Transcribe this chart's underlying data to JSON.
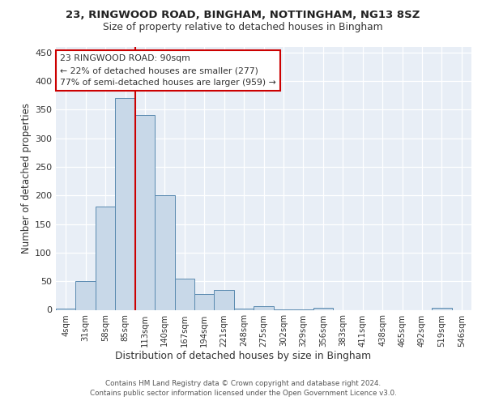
{
  "title1": "23, RINGWOOD ROAD, BINGHAM, NOTTINGHAM, NG13 8SZ",
  "title2": "Size of property relative to detached houses in Bingham",
  "xlabel": "Distribution of detached houses by size in Bingham",
  "ylabel": "Number of detached properties",
  "footnote1": "Contains HM Land Registry data © Crown copyright and database right 2024.",
  "footnote2": "Contains public sector information licensed under the Open Government Licence v3.0.",
  "bin_labels": [
    "4sqm",
    "31sqm",
    "58sqm",
    "85sqm",
    "113sqm",
    "140sqm",
    "167sqm",
    "194sqm",
    "221sqm",
    "248sqm",
    "275sqm",
    "302sqm",
    "329sqm",
    "356sqm",
    "383sqm",
    "411sqm",
    "438sqm",
    "465sqm",
    "492sqm",
    "519sqm",
    "546sqm"
  ],
  "bar_heights": [
    2,
    50,
    180,
    370,
    340,
    200,
    55,
    27,
    34,
    2,
    6,
    1,
    1,
    3,
    0,
    0,
    0,
    0,
    0,
    3,
    0
  ],
  "bar_color": "#c8d8e8",
  "bar_edgecolor": "#5a8ab0",
  "background_color": "#e8eef6",
  "grid_color": "#ffffff",
  "annotation_text": "23 RINGWOOD ROAD: 90sqm\n← 22% of detached houses are smaller (277)\n77% of semi-detached houses are larger (959) →",
  "annotation_box_edgecolor": "#cc0000",
  "annotation_box_facecolor": "#ffffff",
  "ylim": [
    0,
    460
  ],
  "yticks": [
    0,
    50,
    100,
    150,
    200,
    250,
    300,
    350,
    400,
    450
  ],
  "red_line_x": 3.5
}
